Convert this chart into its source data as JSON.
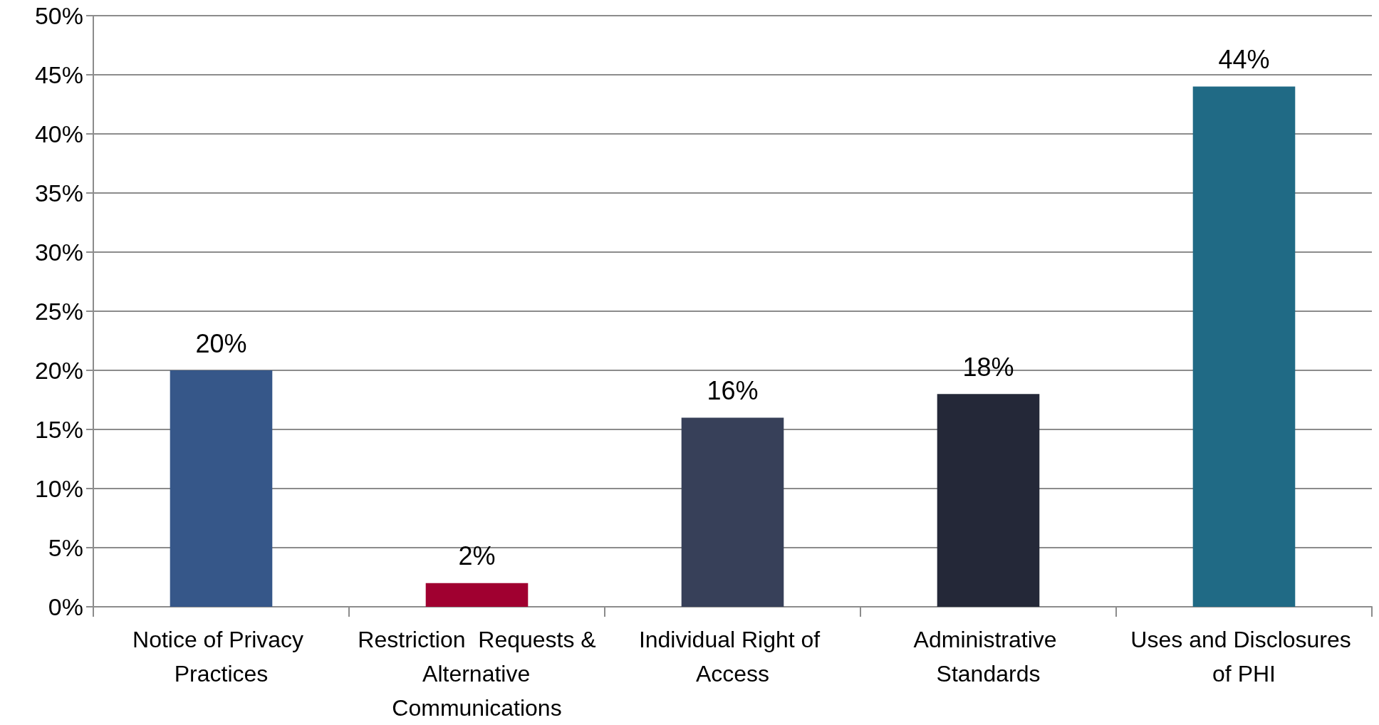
{
  "chart_data": {
    "type": "bar",
    "categories": [
      "Notice of Privacy Practices",
      "Restriction  Requests & Alternative Communications",
      "Individual Right of Access",
      "Administrative Standards",
      "Uses and Disclosures of PHI"
    ],
    "values": [
      20,
      2,
      16,
      18,
      44
    ],
    "colors": [
      "#365789",
      "#a00030",
      "#374059",
      "#242838",
      "#206a85"
    ],
    "value_labels": [
      "20%",
      "2%",
      "16%",
      "18%",
      "44%"
    ],
    "ylim": [
      0,
      50
    ],
    "yticks": [
      {
        "value": 0,
        "label": "0%"
      },
      {
        "value": 5,
        "label": "5%"
      },
      {
        "value": 10,
        "label": "10%"
      },
      {
        "value": 15,
        "label": "15%"
      },
      {
        "value": 20,
        "label": "20%"
      },
      {
        "value": 25,
        "label": "25%"
      },
      {
        "value": 30,
        "label": "30%"
      },
      {
        "value": 35,
        "label": "35%"
      },
      {
        "value": 40,
        "label": "40%"
      },
      {
        "value": 45,
        "label": "45%"
      },
      {
        "value": 50,
        "label": "50%"
      }
    ],
    "grid": "y"
  }
}
